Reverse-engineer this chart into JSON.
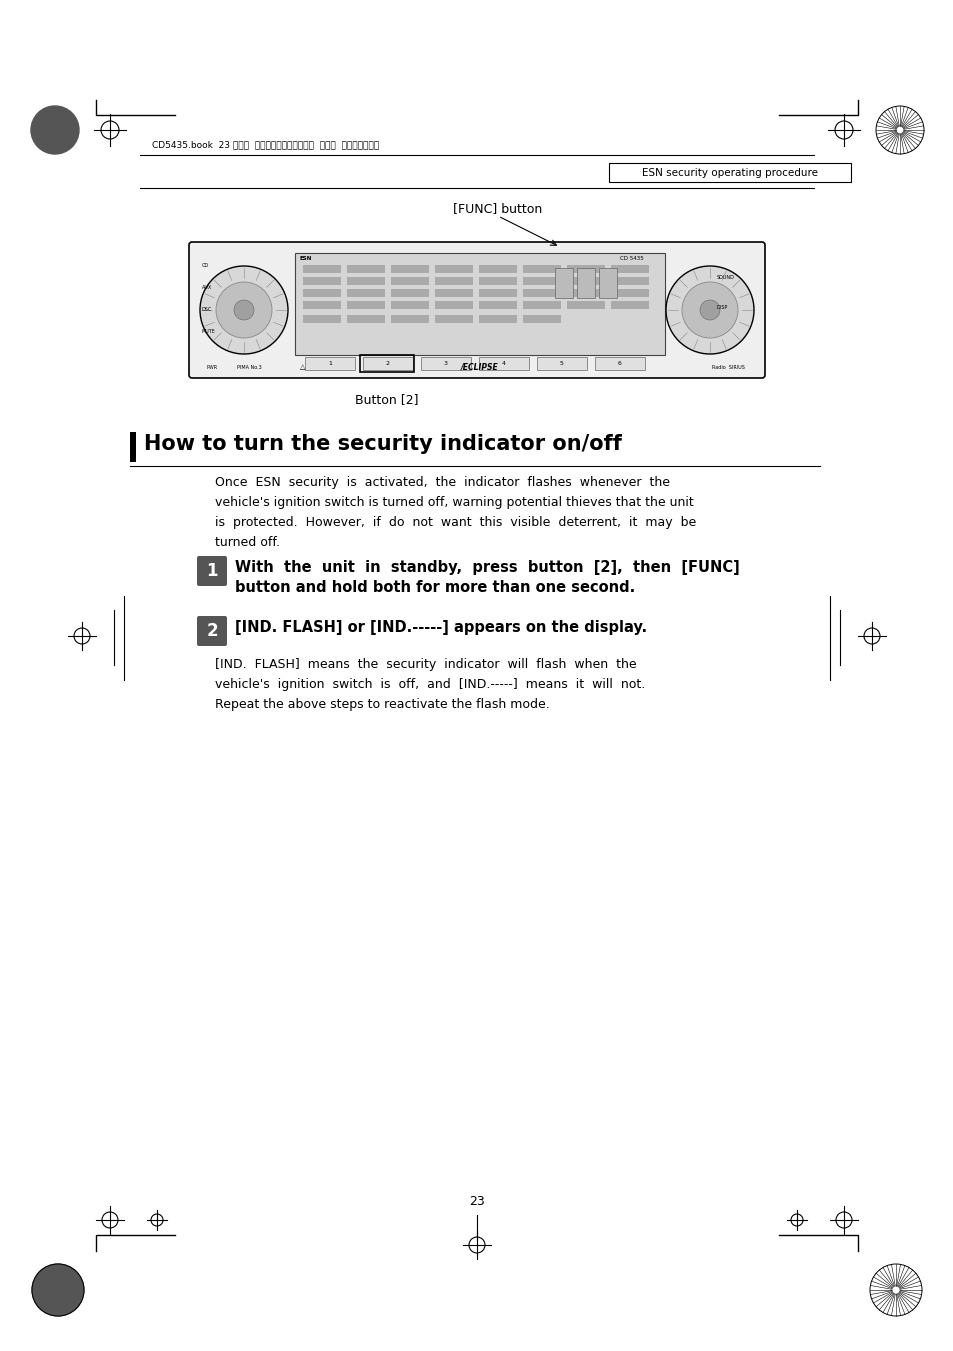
{
  "page_num": "23",
  "header_text": "CD5435.book  23 ページ  ２００４年１２月１１日  土曜日  午後５時２９分",
  "section_label": "ESN security operating procedure",
  "func_label": "[FUNC] button",
  "button_label": "Button [2]",
  "section_title": "How to turn the security indicator on/off",
  "intro_line1": "Once  ESN  security  is  activated,  the  indicator  flashes  whenever  the",
  "intro_line2": "vehicle's ignition switch is turned off, warning potential thieves that the unit",
  "intro_line3": "is  protected.  However,  if  do  not  want  this  visible  deterrent,  it  may  be",
  "intro_line4": "turned off.",
  "step1_line1": "With  the  unit  in  standby,  press  button  [2],  then  [FUNC]",
  "step1_line2": "button and hold both for more than one second.",
  "step2_line1": "[IND. FLASH] or [IND.-----] appears on the display.",
  "body2_line1": "[IND.  FLASH]  means  the  security  indicator  will  flash  when  the",
  "body2_line2": "vehicle's  ignition  switch  is  off,  and  [IND.-----]  means  it  will  not.",
  "body2_line3": "Repeat the above steps to reactivate the flash mode.",
  "bg_color": "#ffffff",
  "text_color": "#000000"
}
